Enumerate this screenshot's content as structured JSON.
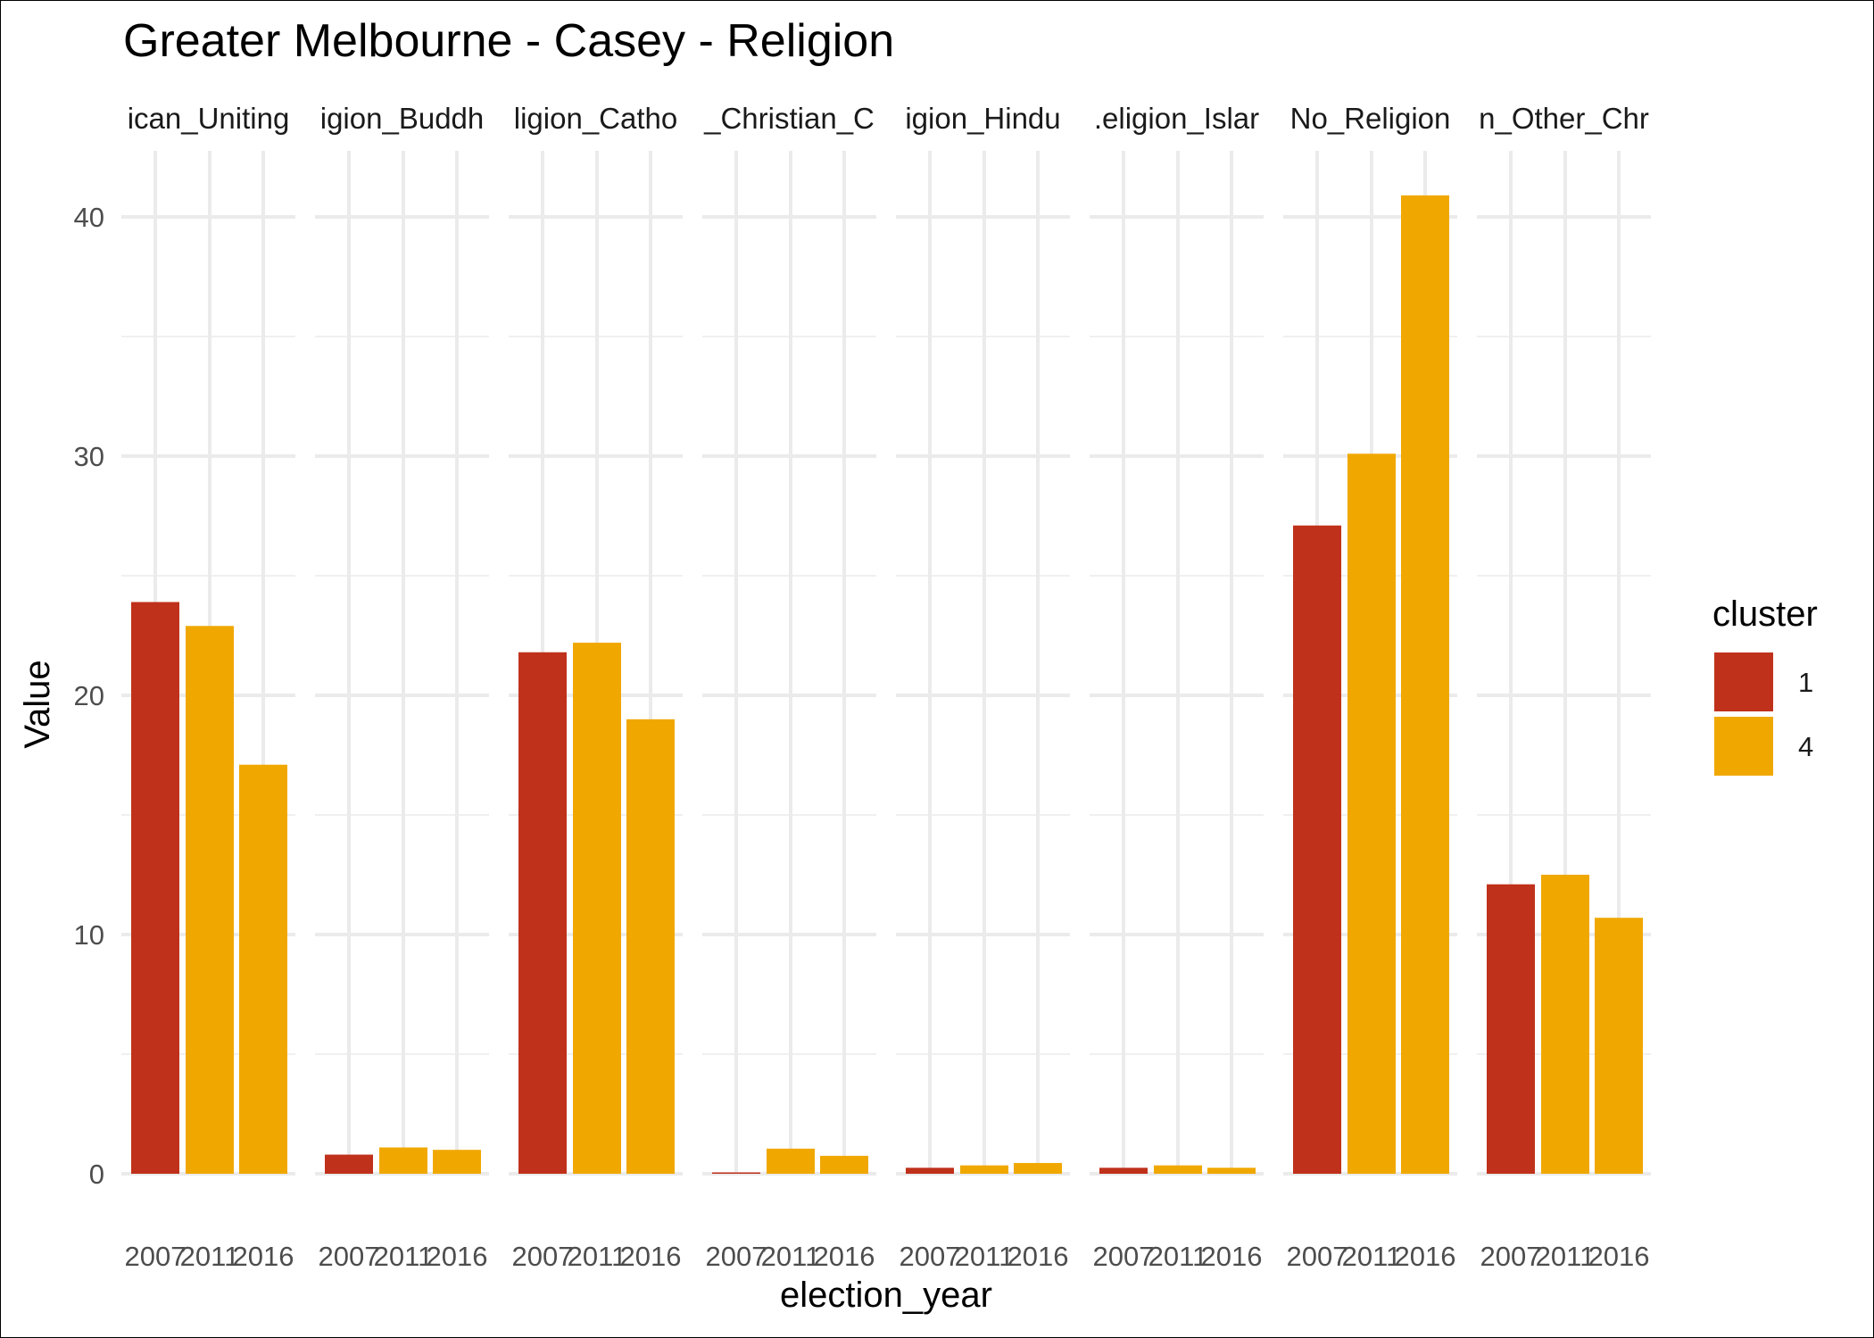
{
  "chart_data": {
    "type": "bar",
    "title": "Greater Melbourne - Casey - Religion",
    "xlabel": "election_year",
    "ylabel": "Value",
    "ylim": [
      0,
      43
    ],
    "y_ticks": [
      0,
      10,
      20,
      30,
      40
    ],
    "grid": true,
    "legend": {
      "title": "cluster",
      "placement": "right",
      "entries": [
        {
          "label": "1",
          "color": "#C0311B"
        },
        {
          "label": "4",
          "color": "#F0A800"
        }
      ]
    },
    "categories": [
      "2007",
      "2011",
      "2016"
    ],
    "tick_labels": [
      "2007",
      "2011",
      "2016"
    ],
    "facets": [
      {
        "name": "Religion_Anglican_Uniting",
        "strip": "ican_Uniting",
        "values": [
          23.9,
          22.9,
          17.1
        ],
        "clusters": [
          "1",
          "4",
          "4"
        ]
      },
      {
        "name": "Religion_Buddhism",
        "strip": "igion_Buddh",
        "values": [
          0.8,
          1.1,
          1.0
        ],
        "clusters": [
          "1",
          "4",
          "4"
        ]
      },
      {
        "name": "Religion_Catholic",
        "strip": "ligion_Catho",
        "values": [
          21.8,
          22.2,
          19.0
        ],
        "clusters": [
          "1",
          "4",
          "4"
        ]
      },
      {
        "name": "Religion_Christian_Other",
        "strip": "_Christian_C",
        "values": [
          0.05,
          1.05,
          0.75
        ],
        "clusters": [
          "1",
          "4",
          "4"
        ]
      },
      {
        "name": "Religion_Hinduism",
        "strip": "igion_Hindu",
        "values": [
          0.25,
          0.35,
          0.45
        ],
        "clusters": [
          "1",
          "4",
          "4"
        ]
      },
      {
        "name": "Religion_Islam",
        "strip": ".eligion_Islar",
        "values": [
          0.25,
          0.35,
          0.25
        ],
        "clusters": [
          "1",
          "4",
          "4"
        ]
      },
      {
        "name": "Religion_No_Religion",
        "strip": "No_Religion",
        "values": [
          27.1,
          30.1,
          40.9
        ],
        "clusters": [
          "1",
          "4",
          "4"
        ]
      },
      {
        "name": "Religion_Other_Christian",
        "strip": "n_Other_Chr",
        "values": [
          12.1,
          12.5,
          10.7
        ],
        "clusters": [
          "1",
          "4",
          "4"
        ]
      }
    ]
  }
}
